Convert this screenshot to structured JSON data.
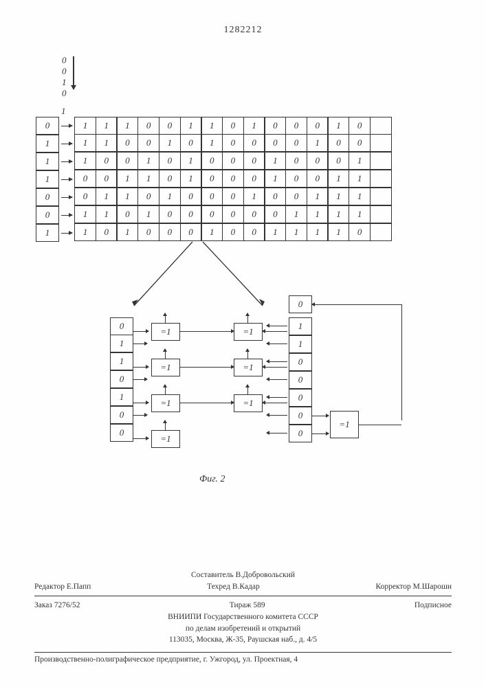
{
  "page_number": "1282212",
  "top_input_bits": [
    "0",
    "0",
    "1",
    "0"
  ],
  "one_label": "1",
  "left_column": [
    "0",
    "1",
    "1",
    "1",
    "0",
    "0",
    "1"
  ],
  "matrix": [
    [
      "1",
      "1",
      "1",
      "0",
      "0",
      "1",
      "1",
      "0",
      "1",
      "0",
      "0",
      "0",
      "1",
      "0",
      ""
    ],
    [
      "1",
      "1",
      "0",
      "0",
      "1",
      "0",
      "1",
      "0",
      "0",
      "0",
      "0",
      "1",
      "0",
      "0",
      ""
    ],
    [
      "1",
      "0",
      "0",
      "1",
      "0",
      "1",
      "0",
      "0",
      "0",
      "1",
      "0",
      "0",
      "0",
      "1",
      ""
    ],
    [
      "0",
      "0",
      "1",
      "1",
      "0",
      "1",
      "0",
      "0",
      "0",
      "1",
      "0",
      "0",
      "1",
      "1",
      ""
    ],
    [
      "0",
      "1",
      "1",
      "0",
      "1",
      "0",
      "0",
      "0",
      "1",
      "0",
      "0",
      "1",
      "1",
      "1",
      ""
    ],
    [
      "1",
      "1",
      "0",
      "1",
      "0",
      "0",
      "0",
      "0",
      "0",
      "0",
      "1",
      "1",
      "1",
      "1",
      ""
    ],
    [
      "1",
      "0",
      "1",
      "0",
      "0",
      "0",
      "1",
      "0",
      "0",
      "1",
      "1",
      "1",
      "1",
      "0",
      ""
    ]
  ],
  "logic": {
    "left_reg": [
      "0",
      "1",
      "1",
      "0",
      "1",
      "0",
      "0"
    ],
    "right_reg": [
      "1",
      "1",
      "0",
      "0",
      "0",
      "0",
      "0"
    ],
    "top_single": "0",
    "xor_label": "=1"
  },
  "figure_caption": "Фиг. 2",
  "footer": {
    "compiler": "Составитель В.Добровольский",
    "editor": "Редактор Е.Папп",
    "techred": "Техред В.Кадар",
    "corrector": "Корректор М.Шароши",
    "order": "Заказ 7276/52",
    "tirazh": "Тираж 589",
    "podpisnoe": "Подписное",
    "org1": "ВНИИПИ Государственного комитета СССР",
    "org2": "по делам изобретений и открытий",
    "addr": "113035, Москва, Ж-35, Раушская наб., д. 4/5",
    "bottom": "Производственно-полиграфическое предприятие, г. Ужгород, ул. Проектная, 4"
  }
}
